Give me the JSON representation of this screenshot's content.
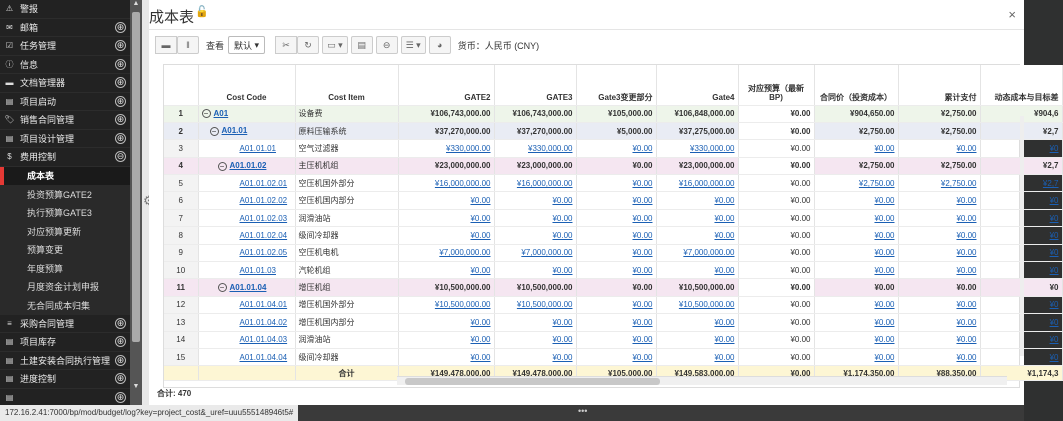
{
  "sidebar": {
    "items": [
      {
        "icon": "⚠",
        "label": "警报",
        "toggle": ""
      },
      {
        "icon": "✉",
        "label": "邮箱",
        "toggle": "⊕"
      },
      {
        "icon": "☑",
        "label": "任务管理",
        "toggle": "⊕"
      },
      {
        "icon": "ⓘ",
        "label": "信息",
        "toggle": "⊕"
      },
      {
        "icon": "▬",
        "label": "文档管理器",
        "toggle": "⊕"
      },
      {
        "icon": "▤",
        "label": "项目启动",
        "toggle": "⊕"
      },
      {
        "icon": "🏷",
        "label": "销售合同管理",
        "toggle": "⊕"
      },
      {
        "icon": "▤",
        "label": "项目设计管理",
        "toggle": "⊕"
      },
      {
        "icon": "$",
        "label": "费用控制",
        "toggle": "⊖"
      }
    ],
    "sub_items": [
      "成本表",
      "投资预算GATE2",
      "执行预算GATE3",
      "对应预算更新",
      "预算变更",
      "年度预算",
      "月度资金计划申报",
      "无合同成本归集"
    ],
    "items_after": [
      {
        "icon": "≡",
        "label": "采购合同管理",
        "toggle": "⊕"
      },
      {
        "icon": "▤",
        "label": "项目库存",
        "toggle": "⊕"
      },
      {
        "icon": "▤",
        "label": "土建安装合同执行管理",
        "toggle": "⊕"
      },
      {
        "icon": "▤",
        "label": "进度控制",
        "toggle": "⊕"
      },
      {
        "icon": "▤",
        "label": "",
        "toggle": "⊕"
      }
    ]
  },
  "header": {
    "title": "成本表",
    "lock_icon": "🔓",
    "close": "×"
  },
  "toolbar": {
    "view_label": "查看",
    "view_value": "默认",
    "currency_label": "货币：人民币 (CNY)"
  },
  "table": {
    "columns": [
      "",
      "Cost Code",
      "Cost Item",
      "GATE2",
      "GATE3",
      "Gate3变更部分",
      "Gate4",
      "对应预算（最新BP)",
      "合同价（投资成本）",
      "累计支付",
      "动态成本与目标差"
    ],
    "rows": [
      {
        "n": "1",
        "level": 1,
        "code": "A01",
        "item": "设备费",
        "gate2": "¥106,743,000.00",
        "gate3": "¥106,743,000.00",
        "chg": "¥105,000.00",
        "gate4": "¥106,848,000.00",
        "bp": "¥0.00",
        "contract": "¥904,650.00",
        "paid": "¥2,750.00",
        "dyn": "¥904,6"
      },
      {
        "n": "2",
        "level": 2,
        "code": "A01.01",
        "item": "原料压输系统",
        "gate2": "¥37,270,000.00",
        "gate3": "¥37,270,000.00",
        "chg": "¥5,000.00",
        "gate4": "¥37,275,000.00",
        "bp": "¥0.00",
        "contract": "¥2,750.00",
        "paid": "¥2,750.00",
        "dyn": "¥2,7"
      },
      {
        "n": "3",
        "level": 0,
        "code": "A01.01.01",
        "item": "空气过滤器",
        "gate2": "¥330,000.00",
        "gate3": "¥330,000.00",
        "chg": "¥0.00",
        "gate4": "¥330,000.00",
        "bp": "¥0.00",
        "contract": "¥0.00",
        "paid": "¥0.00",
        "dyn": "¥0"
      },
      {
        "n": "4",
        "level": 3,
        "code": "A01.01.02",
        "item": "主压机机组",
        "gate2": "¥23,000,000.00",
        "gate3": "¥23,000,000.00",
        "chg": "¥0.00",
        "gate4": "¥23,000,000.00",
        "bp": "¥0.00",
        "contract": "¥2,750.00",
        "paid": "¥2,750.00",
        "dyn": "¥2,7"
      },
      {
        "n": "5",
        "level": 0,
        "code": "A01.01.02.01",
        "item": "空压机国外部分",
        "gate2": "¥16,000,000.00",
        "gate3": "¥16,000,000.00",
        "chg": "¥0.00",
        "gate4": "¥16,000,000.00",
        "bp": "¥0.00",
        "contract": "¥2,750.00",
        "paid": "¥2,750.00",
        "dyn": "¥2,7"
      },
      {
        "n": "6",
        "level": 0,
        "code": "A01.01.02.02",
        "item": "空压机国内部分",
        "gate2": "¥0.00",
        "gate3": "¥0.00",
        "chg": "¥0.00",
        "gate4": "¥0.00",
        "bp": "¥0.00",
        "contract": "¥0.00",
        "paid": "¥0.00",
        "dyn": "¥0"
      },
      {
        "n": "7",
        "level": 0,
        "code": "A01.01.02.03",
        "item": "润滑油站",
        "gate2": "¥0.00",
        "gate3": "¥0.00",
        "chg": "¥0.00",
        "gate4": "¥0.00",
        "bp": "¥0.00",
        "contract": "¥0.00",
        "paid": "¥0.00",
        "dyn": "¥0"
      },
      {
        "n": "8",
        "level": 0,
        "code": "A01.01.02.04",
        "item": "级间冷却器",
        "gate2": "¥0.00",
        "gate3": "¥0.00",
        "chg": "¥0.00",
        "gate4": "¥0.00",
        "bp": "¥0.00",
        "contract": "¥0.00",
        "paid": "¥0.00",
        "dyn": "¥0"
      },
      {
        "n": "9",
        "level": 0,
        "code": "A01.01.02.05",
        "item": "空压机电机",
        "gate2": "¥7,000,000.00",
        "gate3": "¥7,000,000.00",
        "chg": "¥0.00",
        "gate4": "¥7,000,000.00",
        "bp": "¥0.00",
        "contract": "¥0.00",
        "paid": "¥0.00",
        "dyn": "¥0"
      },
      {
        "n": "10",
        "level": 0,
        "code": "A01.01.03",
        "item": "汽轮机组",
        "gate2": "¥0.00",
        "gate3": "¥0.00",
        "chg": "¥0.00",
        "gate4": "¥0.00",
        "bp": "¥0.00",
        "contract": "¥0.00",
        "paid": "¥0.00",
        "dyn": "¥0"
      },
      {
        "n": "11",
        "level": 3,
        "code": "A01.01.04",
        "item": "增压机组",
        "gate2": "¥10,500,000.00",
        "gate3": "¥10,500,000.00",
        "chg": "¥0.00",
        "gate4": "¥10,500,000.00",
        "bp": "¥0.00",
        "contract": "¥0.00",
        "paid": "¥0.00",
        "dyn": "¥0"
      },
      {
        "n": "12",
        "level": 0,
        "code": "A01.01.04.01",
        "item": "增压机国外部分",
        "gate2": "¥10,500,000.00",
        "gate3": "¥10,500,000.00",
        "chg": "¥0.00",
        "gate4": "¥10,500,000.00",
        "bp": "¥0.00",
        "contract": "¥0.00",
        "paid": "¥0.00",
        "dyn": "¥0"
      },
      {
        "n": "13",
        "level": 0,
        "code": "A01.01.04.02",
        "item": "增压机国内部分",
        "gate2": "¥0.00",
        "gate3": "¥0.00",
        "chg": "¥0.00",
        "gate4": "¥0.00",
        "bp": "¥0.00",
        "contract": "¥0.00",
        "paid": "¥0.00",
        "dyn": "¥0"
      },
      {
        "n": "14",
        "level": 0,
        "code": "A01.01.04.03",
        "item": "润滑油站",
        "gate2": "¥0.00",
        "gate3": "¥0.00",
        "chg": "¥0.00",
        "gate4": "¥0.00",
        "bp": "¥0.00",
        "contract": "¥0.00",
        "paid": "¥0.00",
        "dyn": "¥0"
      },
      {
        "n": "15",
        "level": 0,
        "code": "A01.01.04.04",
        "item": "级间冷却器",
        "gate2": "¥0.00",
        "gate3": "¥0.00",
        "chg": "¥0.00",
        "gate4": "¥0.00",
        "bp": "¥0.00",
        "contract": "¥0.00",
        "paid": "¥0.00",
        "dyn": "¥0"
      }
    ],
    "total": {
      "label": "合计",
      "gate2": "¥149,478,000.00",
      "gate3": "¥149,478,000.00",
      "chg": "¥105,000.00",
      "gate4": "¥149,583,000.00",
      "bp": "¥0.00",
      "contract": "¥1,174,350.00",
      "paid": "¥88,350.00",
      "dyn": "¥1,174,3"
    }
  },
  "footer": {
    "count_label": "合计: 470"
  },
  "status": {
    "url": "172.16.2.41:7000/bp/mod/budget/log?key=project_cost&_uref=uuu555148946t5#",
    "dots": "•••"
  }
}
